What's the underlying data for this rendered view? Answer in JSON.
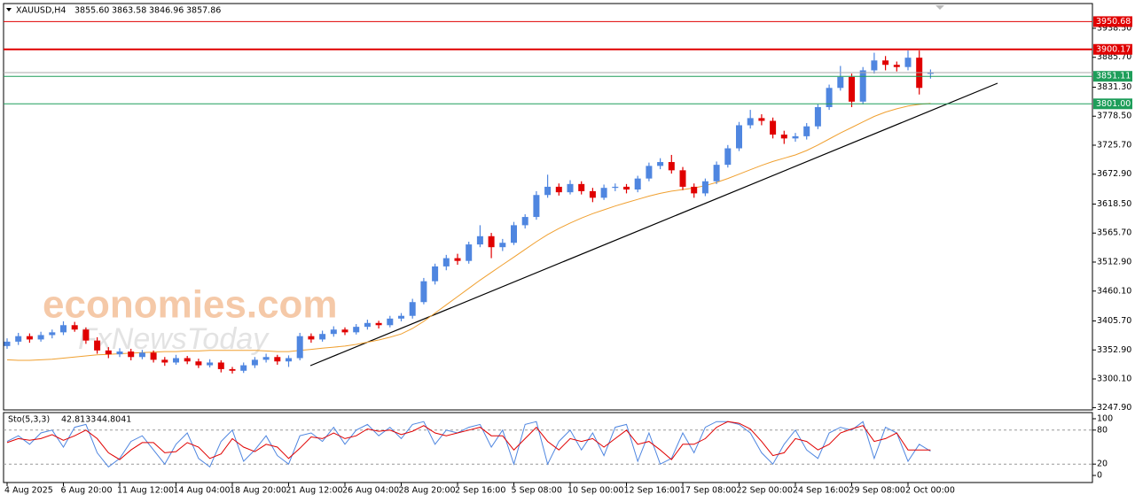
{
  "chart_data": {
    "type": "candlestick",
    "header": {
      "symbol": "XAUUSD,H4",
      "ohlc_labels": [
        "3855.60",
        "3863.58",
        "3846.96",
        "3857.86"
      ]
    },
    "watermark": [
      "economies.com",
      "FxNewsToday"
    ],
    "up_color": "#4f86e0",
    "down_color": "#e00000",
    "ylim": [
      3243.7,
      3983.6
    ],
    "yticks": [
      {
        "value": 3938.5,
        "label": "3938.50"
      },
      {
        "value": 3885.7,
        "label": "3885.70"
      },
      {
        "value": 3831.3,
        "label": "3831.30"
      },
      {
        "value": 3778.5,
        "label": "3778.50"
      },
      {
        "value": 3725.7,
        "label": "3725.70"
      },
      {
        "value": 3672.9,
        "label": "3672.90"
      },
      {
        "value": 3618.5,
        "label": "3618.50"
      },
      {
        "value": 3565.7,
        "label": "3565.70"
      },
      {
        "value": 3512.9,
        "label": "3512.90"
      },
      {
        "value": 3460.1,
        "label": "3460.10"
      },
      {
        "value": 3405.7,
        "label": "3405.70"
      },
      {
        "value": 3352.9,
        "label": "3352.90"
      },
      {
        "value": 3300.1,
        "label": "3300.10"
      },
      {
        "value": 3247.9,
        "label": "3247.90"
      }
    ],
    "levels": [
      {
        "value": 3950.68,
        "label": "3950.68",
        "color": "#e00000"
      },
      {
        "value": 3900.17,
        "label": "3900.17",
        "color": "#e00000"
      },
      {
        "value": 3851.11,
        "label": "3851.11",
        "color": "#1e9e5a"
      },
      {
        "value": 3801.0,
        "label": "3801.00",
        "color": "#1e9e5a"
      }
    ],
    "categories": [
      "4 Aug 2025",
      null,
      null,
      null,
      null,
      "6 Aug 20:00",
      null,
      null,
      null,
      null,
      "11 Aug 12:00",
      null,
      null,
      null,
      null,
      "14 Aug 04:00",
      null,
      null,
      null,
      null,
      "18 Aug 20:00",
      null,
      null,
      null,
      null,
      "21 Aug 12:00",
      null,
      null,
      null,
      null,
      "26 Aug 04:00",
      null,
      null,
      null,
      null,
      "28 Aug 20:00",
      null,
      null,
      null,
      null,
      "2 Sep 16:00",
      null,
      null,
      null,
      null,
      "5 Sep 08:00",
      null,
      null,
      null,
      null,
      "10 Sep 00:00",
      null,
      null,
      null,
      null,
      "12 Sep 16:00",
      null,
      null,
      null,
      null,
      "17 Sep 08:00",
      null,
      null,
      null,
      null,
      "22 Sep 00:00",
      null,
      null,
      null,
      null,
      "24 Sep 16:00",
      null,
      null,
      null,
      null,
      "29 Sep 08:00",
      null,
      null,
      null,
      null,
      "2 Oct 00:00",
      null,
      null
    ],
    "candles": [
      [
        3360,
        3374,
        3355,
        3368
      ],
      [
        3368,
        3384,
        3362,
        3378
      ],
      [
        3378,
        3383,
        3366,
        3372
      ],
      [
        3372,
        3386,
        3368,
        3380
      ],
      [
        3380,
        3390,
        3374,
        3385
      ],
      [
        3385,
        3405,
        3380,
        3398
      ],
      [
        3398,
        3404,
        3386,
        3390
      ],
      [
        3390,
        3394,
        3364,
        3370
      ],
      [
        3370,
        3376,
        3346,
        3352
      ],
      [
        3352,
        3358,
        3338,
        3345
      ],
      [
        3345,
        3356,
        3340,
        3350
      ],
      [
        3350,
        3355,
        3334,
        3340
      ],
      [
        3340,
        3353,
        3336,
        3348
      ],
      [
        3348,
        3352,
        3330,
        3335
      ],
      [
        3335,
        3340,
        3324,
        3330
      ],
      [
        3330,
        3344,
        3326,
        3338
      ],
      [
        3338,
        3342,
        3327,
        3332
      ],
      [
        3332,
        3337,
        3320,
        3325
      ],
      [
        3325,
        3336,
        3321,
        3330
      ],
      [
        3330,
        3334,
        3312,
        3318
      ],
      [
        3318,
        3322,
        3310,
        3315
      ],
      [
        3315,
        3330,
        3311,
        3325
      ],
      [
        3325,
        3340,
        3320,
        3335
      ],
      [
        3335,
        3346,
        3330,
        3340
      ],
      [
        3340,
        3344,
        3326,
        3332
      ],
      [
        3332,
        3343,
        3322,
        3338
      ],
      [
        3338,
        3384,
        3334,
        3378
      ],
      [
        3378,
        3383,
        3366,
        3372
      ],
      [
        3372,
        3388,
        3368,
        3382
      ],
      [
        3382,
        3396,
        3377,
        3390
      ],
      [
        3390,
        3394,
        3380,
        3385
      ],
      [
        3385,
        3400,
        3381,
        3395
      ],
      [
        3395,
        3408,
        3390,
        3402
      ],
      [
        3402,
        3406,
        3392,
        3398
      ],
      [
        3398,
        3415,
        3394,
        3410
      ],
      [
        3410,
        3420,
        3405,
        3415
      ],
      [
        3415,
        3446,
        3410,
        3440
      ],
      [
        3440,
        3484,
        3436,
        3478
      ],
      [
        3478,
        3510,
        3472,
        3505
      ],
      [
        3505,
        3526,
        3498,
        3520
      ],
      [
        3520,
        3528,
        3508,
        3515
      ],
      [
        3515,
        3550,
        3510,
        3545
      ],
      [
        3545,
        3580,
        3540,
        3560
      ],
      [
        3560,
        3566,
        3520,
        3540
      ],
      [
        3540,
        3555,
        3533,
        3548
      ],
      [
        3548,
        3586,
        3544,
        3580
      ],
      [
        3580,
        3600,
        3574,
        3595
      ],
      [
        3595,
        3642,
        3590,
        3635
      ],
      [
        3635,
        3672,
        3630,
        3650
      ],
      [
        3650,
        3656,
        3634,
        3640
      ],
      [
        3640,
        3662,
        3636,
        3655
      ],
      [
        3655,
        3660,
        3636,
        3642
      ],
      [
        3642,
        3648,
        3622,
        3630
      ],
      [
        3630,
        3654,
        3626,
        3648
      ],
      [
        3648,
        3656,
        3642,
        3650
      ],
      [
        3650,
        3655,
        3638,
        3645
      ],
      [
        3645,
        3670,
        3640,
        3665
      ],
      [
        3665,
        3694,
        3660,
        3688
      ],
      [
        3688,
        3702,
        3682,
        3695
      ],
      [
        3695,
        3708,
        3674,
        3680
      ],
      [
        3680,
        3686,
        3644,
        3650
      ],
      [
        3650,
        3656,
        3630,
        3638
      ],
      [
        3638,
        3665,
        3633,
        3660
      ],
      [
        3660,
        3696,
        3655,
        3690
      ],
      [
        3690,
        3726,
        3685,
        3720
      ],
      [
        3720,
        3768,
        3715,
        3762
      ],
      [
        3762,
        3790,
        3756,
        3775
      ],
      [
        3775,
        3782,
        3762,
        3770
      ],
      [
        3770,
        3776,
        3738,
        3745
      ],
      [
        3745,
        3752,
        3728,
        3738
      ],
      [
        3738,
        3748,
        3732,
        3742
      ],
      [
        3742,
        3766,
        3736,
        3760
      ],
      [
        3760,
        3800,
        3755,
        3795
      ],
      [
        3795,
        3836,
        3790,
        3830
      ],
      [
        3830,
        3870,
        3825,
        3850
      ],
      [
        3850,
        3856,
        3795,
        3805
      ],
      [
        3805,
        3868,
        3800,
        3862
      ],
      [
        3862,
        3894,
        3856,
        3880
      ],
      [
        3880,
        3888,
        3862,
        3872
      ],
      [
        3872,
        3878,
        3860,
        3868
      ],
      [
        3868,
        3898,
        3862,
        3885
      ],
      [
        3885,
        3898,
        3818,
        3830
      ],
      [
        3855.6,
        3863.58,
        3846.96,
        3857.86
      ]
    ],
    "ma": {
      "color": "#f0a030",
      "values": [
        3335,
        3334,
        3334,
        3335,
        3336,
        3338,
        3340,
        3342,
        3344,
        3345,
        3346,
        3347,
        3348,
        3349,
        3350,
        3350,
        3351,
        3351,
        3352,
        3352,
        3352,
        3352,
        3352,
        3351,
        3350,
        3350,
        3352,
        3354,
        3356,
        3358,
        3360,
        3363,
        3367,
        3371,
        3376,
        3382,
        3392,
        3405,
        3420,
        3435,
        3450,
        3465,
        3480,
        3494,
        3508,
        3522,
        3536,
        3550,
        3563,
        3574,
        3584,
        3593,
        3601,
        3608,
        3615,
        3621,
        3627,
        3633,
        3638,
        3642,
        3645,
        3648,
        3652,
        3658,
        3665,
        3673,
        3681,
        3689,
        3696,
        3702,
        3708,
        3716,
        3726,
        3737,
        3748,
        3758,
        3768,
        3778,
        3786,
        3792,
        3797,
        3800,
        3802
      ]
    },
    "stochastic": {
      "name": "Sto(5,3,3)",
      "ylim": [
        -12.5,
        110.9
      ],
      "yticks": [
        100,
        80,
        20,
        0
      ],
      "levels": [
        80,
        20
      ],
      "series": [
        {
          "color": "#4f86e0",
          "values": [
            60,
            70,
            55,
            75,
            80,
            50,
            85,
            90,
            40,
            15,
            30,
            60,
            70,
            45,
            20,
            55,
            75,
            30,
            15,
            60,
            80,
            25,
            45,
            70,
            35,
            20,
            70,
            75,
            60,
            85,
            55,
            80,
            90,
            70,
            85,
            65,
            90,
            95,
            55,
            80,
            75,
            85,
            90,
            50,
            80,
            20,
            90,
            95,
            20,
            60,
            80,
            45,
            75,
            35,
            85,
            90,
            25,
            75,
            20,
            30,
            75,
            40,
            85,
            95,
            95,
            90,
            75,
            40,
            20,
            55,
            80,
            45,
            30,
            75,
            85,
            80,
            95,
            30,
            85,
            75,
            25,
            55,
            42.8133
          ]
        },
        {
          "color": "#e00000",
          "values": [
            58,
            65,
            62,
            65,
            72,
            62,
            70,
            80,
            65,
            40,
            28,
            45,
            58,
            58,
            40,
            42,
            58,
            50,
            30,
            38,
            65,
            50,
            42,
            55,
            50,
            30,
            48,
            68,
            65,
            75,
            65,
            70,
            82,
            78,
            80,
            72,
            78,
            88,
            75,
            70,
            75,
            80,
            85,
            70,
            70,
            45,
            65,
            85,
            60,
            45,
            65,
            60,
            65,
            50,
            65,
            80,
            55,
            60,
            45,
            28,
            55,
            55,
            65,
            85,
            95,
            92,
            82,
            60,
            35,
            40,
            65,
            60,
            45,
            55,
            75,
            82,
            88,
            60,
            65,
            75,
            45,
            45,
            44.8041
          ]
        }
      ]
    }
  }
}
